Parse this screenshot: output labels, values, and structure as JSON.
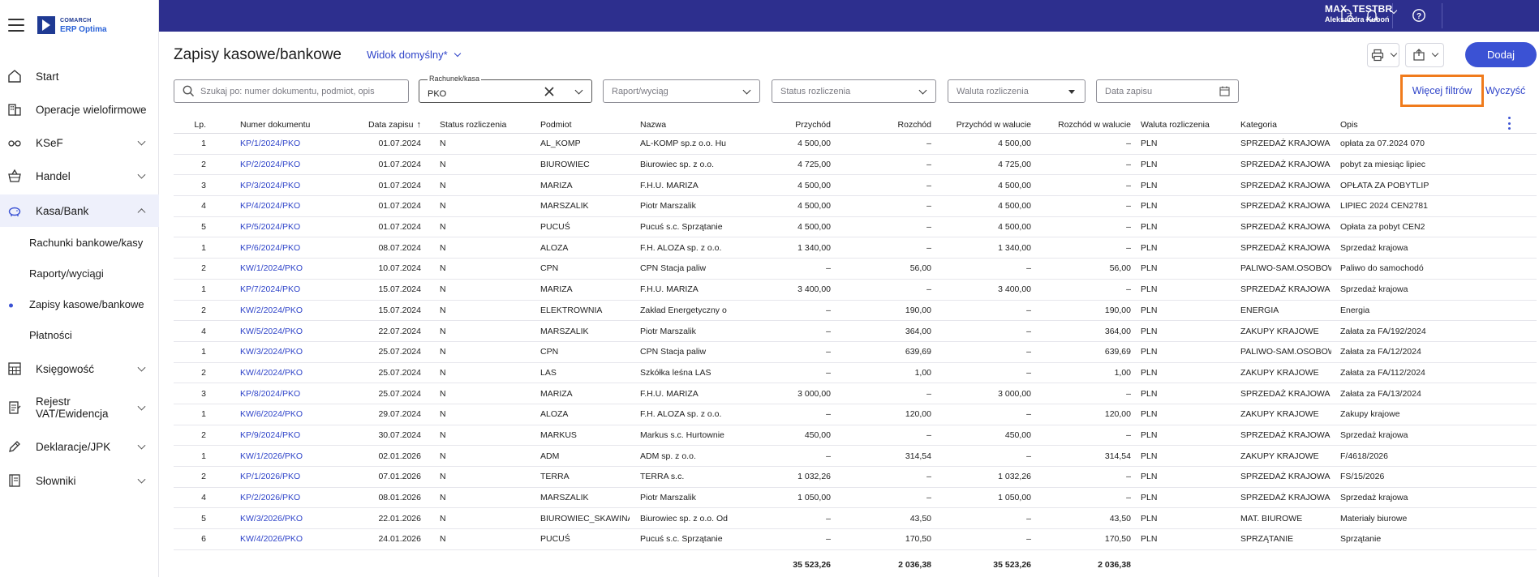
{
  "brand": {
    "line1": "COMARCH",
    "line2": "ERP Optima"
  },
  "nav": {
    "start": "Start",
    "multi": "Operacje wielofirmowe",
    "ksef": "KSeF",
    "handel": "Handel",
    "kasa": "Kasa/Bank",
    "sub_accounts": "Rachunki bankowe/kasy",
    "sub_reports": "Raporty/wyciągi",
    "sub_entries": "Zapisy kasowe/bankowe",
    "sub_payments": "Płatności",
    "ksiegowosc": "Księgowość",
    "rejestr_line1": "Rejestr",
    "rejestr_line2": "VAT/Ewidencja",
    "deklaracje": "Deklaracje/JPK",
    "slowniki": "Słowniki"
  },
  "user": {
    "name": "MAX_TESTBR",
    "person": "Aleksandra Kuboń"
  },
  "header": {
    "title": "Zapisy kasowe/bankowe",
    "view": "Widok domyślny*",
    "add": "Dodaj"
  },
  "filters": {
    "search_placeholder": "Szukaj po: numer dokumentu, podmiot, opis",
    "account_label": "Rachunek/kasa",
    "account_value": "PKO",
    "report_placeholder": "Raport/wyciąg",
    "status_placeholder": "Status rozliczenia",
    "currency_placeholder": "Waluta rozliczenia",
    "date_placeholder": "Data zapisu",
    "more": "Więcej filtrów",
    "clear": "Wyczyść"
  },
  "table": {
    "headers": [
      "Lp.",
      "Numer dokumentu",
      "Data zapisu",
      "Status rozliczenia",
      "Podmiot",
      "Nazwa",
      "Przychód",
      "Rozchód",
      "Przychód w walucie",
      "Rozchód w walucie",
      "Waluta rozliczenia",
      "Kategoria",
      "Opis"
    ],
    "sort_symbol": "↑",
    "rows": [
      [
        "1",
        "KP/1/2024/PKO",
        "01.07.2024",
        "N",
        "AL_KOMP",
        "AL-KOMP sp.z o.o. Hu",
        "4 500,00",
        "–",
        "4 500,00",
        "–",
        "PLN",
        "SPRZEDAŻ KRAJOWA",
        "opłata za 07.2024 070"
      ],
      [
        "2",
        "KP/2/2024/PKO",
        "01.07.2024",
        "N",
        "BIUROWIEC",
        "Biurowiec sp. z o.o.",
        "4 725,00",
        "–",
        "4 725,00",
        "–",
        "PLN",
        "SPRZEDAŻ KRAJOWA",
        "pobyt za miesiąc lipiec"
      ],
      [
        "3",
        "KP/3/2024/PKO",
        "01.07.2024",
        "N",
        "MARIZA",
        "F.H.U. MARIZA",
        "4 500,00",
        "–",
        "4 500,00",
        "–",
        "PLN",
        "SPRZEDAŻ KRAJOWA",
        "OPŁATA ZA POBYTLIP"
      ],
      [
        "4",
        "KP/4/2024/PKO",
        "01.07.2024",
        "N",
        "MARSZALIK",
        "Piotr Marszalik",
        "4 500,00",
        "–",
        "4 500,00",
        "–",
        "PLN",
        "SPRZEDAŻ KRAJOWA",
        "LIPIEC 2024 CEN2781"
      ],
      [
        "5",
        "KP/5/2024/PKO",
        "01.07.2024",
        "N",
        "PUCUŚ",
        "Pucuś s.c. Sprzątanie",
        "4 500,00",
        "–",
        "4 500,00",
        "–",
        "PLN",
        "SPRZEDAŻ KRAJOWA",
        "Opłata za pobyt CEN2"
      ],
      [
        "1",
        "KP/6/2024/PKO",
        "08.07.2024",
        "N",
        "ALOZA",
        "F.H. ALOZA sp. z o.o.",
        "1 340,00",
        "–",
        "1 340,00",
        "–",
        "PLN",
        "SPRZEDAŻ KRAJOWA",
        "Sprzedaż krajowa"
      ],
      [
        "2",
        "KW/1/2024/PKO",
        "10.07.2024",
        "N",
        "CPN",
        "CPN Stacja paliw",
        "–",
        "56,00",
        "–",
        "56,00",
        "PLN",
        "PALIWO-SAM.OSOBOW",
        "Paliwo do samochodó"
      ],
      [
        "1",
        "KP/7/2024/PKO",
        "15.07.2024",
        "N",
        "MARIZA",
        "F.H.U. MARIZA",
        "3 400,00",
        "–",
        "3 400,00",
        "–",
        "PLN",
        "SPRZEDAŻ KRAJOWA",
        "Sprzedaż krajowa"
      ],
      [
        "2",
        "KW/2/2024/PKO",
        "15.07.2024",
        "N",
        "ELEKTROWNIA",
        "Zakład Energetyczny o",
        "–",
        "190,00",
        "–",
        "190,00",
        "PLN",
        "ENERGIA",
        "Energia"
      ],
      [
        "4",
        "KW/5/2024/PKO",
        "22.07.2024",
        "N",
        "MARSZALIK",
        "Piotr Marszalik",
        "–",
        "364,00",
        "–",
        "364,00",
        "PLN",
        "ZAKUPY KRAJOWE",
        "Załata za FA/192/2024"
      ],
      [
        "1",
        "KW/3/2024/PKO",
        "25.07.2024",
        "N",
        "CPN",
        "CPN Stacja paliw",
        "–",
        "639,69",
        "–",
        "639,69",
        "PLN",
        "PALIWO-SAM.OSOBOW",
        "Załata za FA/12/2024"
      ],
      [
        "2",
        "KW/4/2024/PKO",
        "25.07.2024",
        "N",
        "LAS",
        "Szkółka leśna LAS",
        "–",
        "1,00",
        "–",
        "1,00",
        "PLN",
        "ZAKUPY KRAJOWE",
        "Załata za FA/112/2024"
      ],
      [
        "3",
        "KP/8/2024/PKO",
        "25.07.2024",
        "N",
        "MARIZA",
        "F.H.U. MARIZA",
        "3 000,00",
        "–",
        "3 000,00",
        "–",
        "PLN",
        "SPRZEDAŻ KRAJOWA",
        "Załata za FA/13/2024"
      ],
      [
        "1",
        "KW/6/2024/PKO",
        "29.07.2024",
        "N",
        "ALOZA",
        "F.H. ALOZA sp. z o.o.",
        "–",
        "120,00",
        "–",
        "120,00",
        "PLN",
        "ZAKUPY KRAJOWE",
        "Zakupy krajowe"
      ],
      [
        "2",
        "KP/9/2024/PKO",
        "30.07.2024",
        "N",
        "MARKUS",
        "Markus s.c. Hurtownie",
        "450,00",
        "–",
        "450,00",
        "–",
        "PLN",
        "SPRZEDAŻ KRAJOWA",
        "Sprzedaż krajowa"
      ],
      [
        "1",
        "KW/1/2026/PKO",
        "02.01.2026",
        "N",
        "ADM",
        "ADM sp. z o.o.",
        "–",
        "314,54",
        "–",
        "314,54",
        "PLN",
        "ZAKUPY KRAJOWE",
        "F/4618/2026"
      ],
      [
        "2",
        "KP/1/2026/PKO",
        "07.01.2026",
        "N",
        "TERRA",
        "TERRA s.c.",
        "1 032,26",
        "–",
        "1 032,26",
        "–",
        "PLN",
        "SPRZEDAŻ KRAJOWA",
        "FS/15/2026"
      ],
      [
        "4",
        "KP/2/2026/PKO",
        "08.01.2026",
        "N",
        "MARSZALIK",
        "Piotr Marszalik",
        "1 050,00",
        "–",
        "1 050,00",
        "–",
        "PLN",
        "SPRZEDAŻ KRAJOWA",
        "Sprzedaż krajowa"
      ],
      [
        "5",
        "KW/3/2026/PKO",
        "22.01.2026",
        "N",
        "BIUROWIEC_SKAWINA",
        "Biurowiec sp. z o.o. Od",
        "–",
        "43,50",
        "–",
        "43,50",
        "PLN",
        "MAT. BIUROWE",
        "Materiały biurowe"
      ],
      [
        "6",
        "KW/4/2026/PKO",
        "24.01.2026",
        "N",
        "PUCUŚ",
        "Pucuś s.c. Sprzątanie",
        "–",
        "170,50",
        "–",
        "170,50",
        "PLN",
        "SPRZĄTANIE",
        "Sprzątanie"
      ]
    ],
    "totals": {
      "income": "35 523,26",
      "expense": "2 036,38",
      "income_cur": "35 523,26",
      "expense_cur": "2 036,38"
    }
  },
  "colors": {
    "topbar": "#2d2f8e",
    "accent": "#3b52d4",
    "highlight": "#f07b1c"
  },
  "icons": [
    "menu-icon",
    "home-icon",
    "buildings-icon",
    "ksef-icon",
    "basket-icon",
    "piggy-bank-icon",
    "calculator-icon",
    "register-icon",
    "pen-icon",
    "book-icon",
    "document-clock-icon",
    "bell-icon",
    "help-icon",
    "printer-icon",
    "export-icon",
    "search-icon",
    "close-icon",
    "calendar-icon",
    "kebab-icon"
  ]
}
